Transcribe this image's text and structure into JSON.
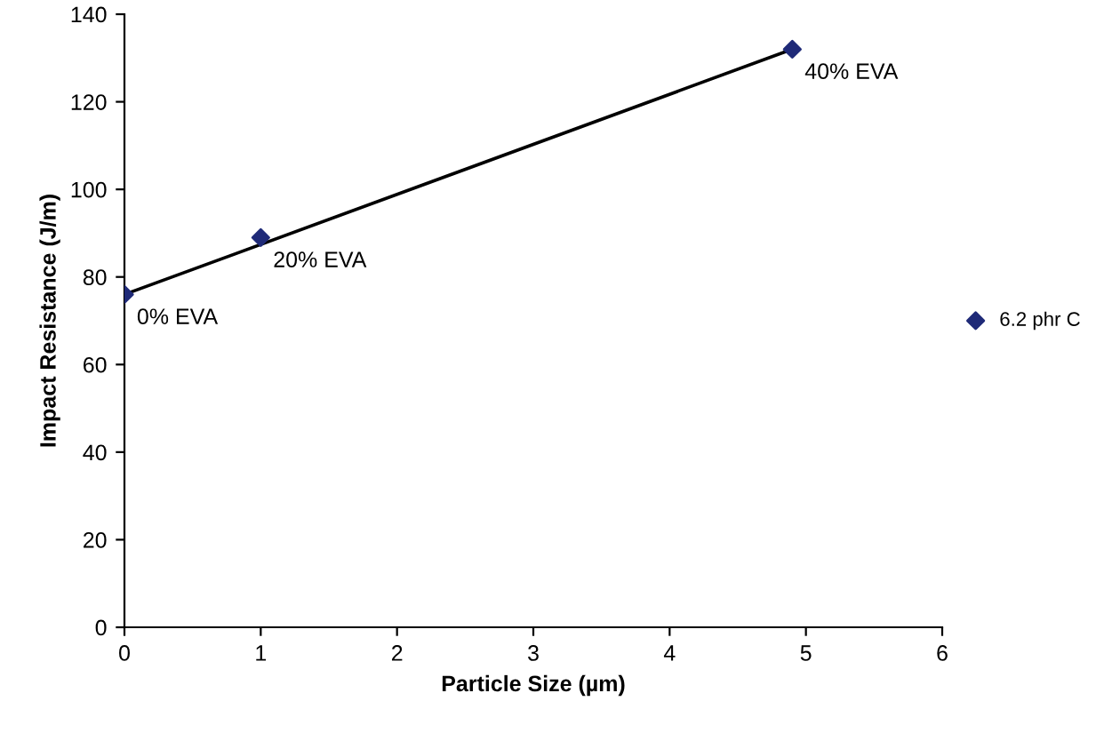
{
  "chart_data": {
    "type": "scatter",
    "xlabel": "Particle Size (µm)",
    "ylabel": "Impact Resistance (J/m)",
    "xlim": [
      0,
      6
    ],
    "xticks": [
      0,
      1,
      2,
      3,
      4,
      5,
      6
    ],
    "ylim": [
      0,
      140
    ],
    "yticks": [
      0,
      20,
      40,
      60,
      80,
      100,
      120,
      140
    ],
    "grid": false,
    "legend": "right",
    "series": [
      {
        "name": "6.2 phr C",
        "color": "#1f2a78",
        "marker": "diamond",
        "x": [
          0,
          1,
          4.9
        ],
        "values": [
          76,
          89,
          132
        ]
      },
      {
        "type": "line",
        "color": "#000000",
        "x": [
          0,
          4.9
        ],
        "values": [
          76,
          132
        ]
      }
    ],
    "annotations": [
      {
        "text": "0% EVA",
        "x": 0,
        "y": 76
      },
      {
        "text": "20% EVA",
        "x": 1,
        "y": 89
      },
      {
        "text": "40% EVA",
        "x": 4.9,
        "y": 132
      }
    ]
  }
}
